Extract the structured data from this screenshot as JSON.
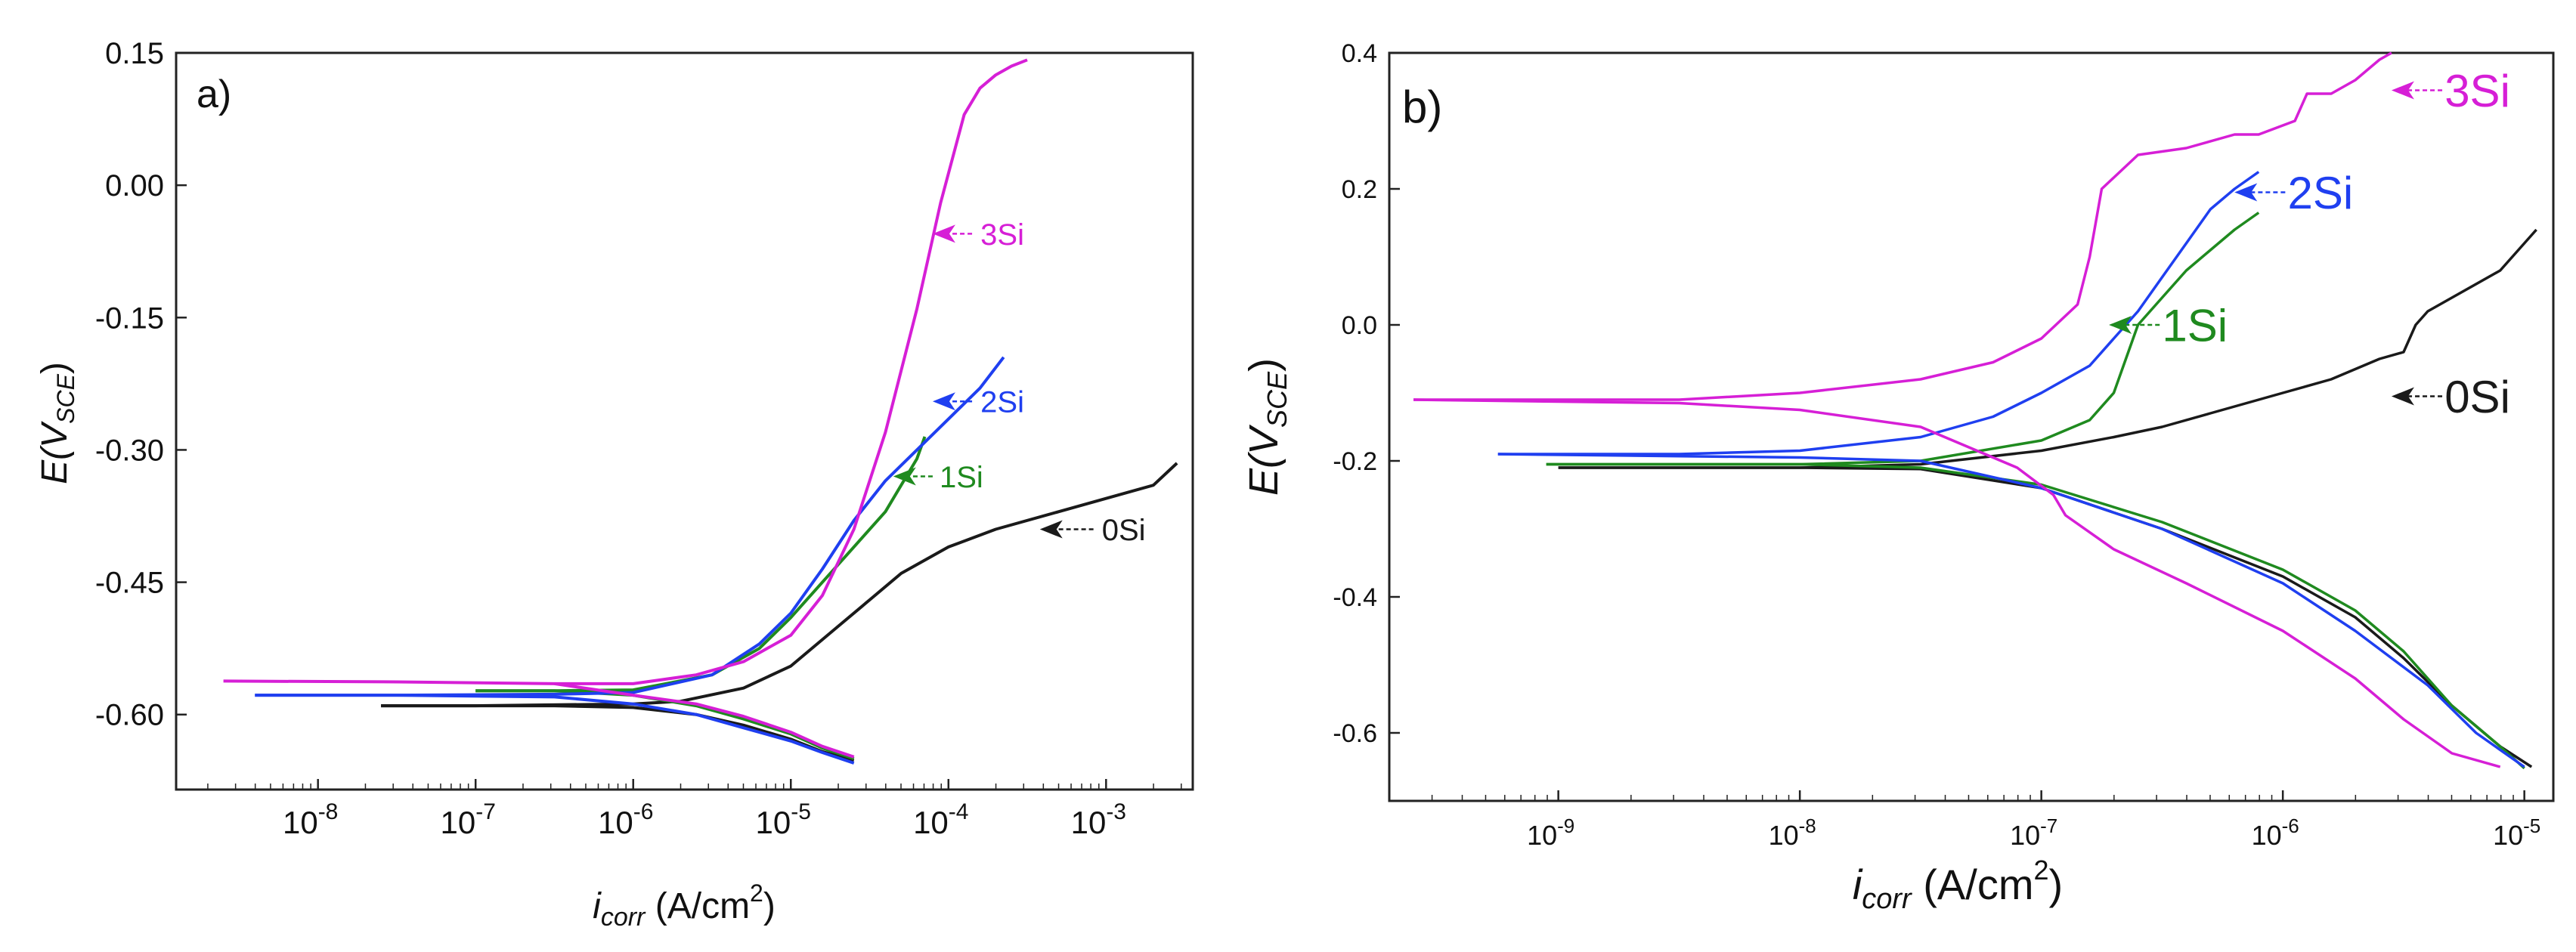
{
  "chart_data": [
    {
      "panel_label": "a)",
      "type": "line",
      "title": "",
      "xlabel_main": "i",
      "xlabel_sub": "corr",
      "xlabel_unit": " (A/cm",
      "xlabel_sup": "2",
      "xlabel_close": ")",
      "ylabel_main": "E(V",
      "ylabel_sub": "SCE",
      "ylabel_close": ")",
      "xscale": "log",
      "xlim_log10": [
        -8.9,
        -2.45
      ],
      "ylim": [
        -0.685,
        0.15
      ],
      "xticks": [
        {
          "exp": -8,
          "label": "10",
          "sup": "-8"
        },
        {
          "exp": -7,
          "label": "10",
          "sup": "-7"
        },
        {
          "exp": -6,
          "label": "10",
          "sup": "-6"
        },
        {
          "exp": -5,
          "label": "10",
          "sup": "-5"
        },
        {
          "exp": -4,
          "label": "10",
          "sup": "-4"
        },
        {
          "exp": -3,
          "label": "10",
          "sup": "-3"
        }
      ],
      "yticks": [
        {
          "value": 0.15,
          "label": "0.15"
        },
        {
          "value": 0.0,
          "label": "0.00"
        },
        {
          "value": -0.15,
          "label": "-0.15"
        },
        {
          "value": -0.3,
          "label": "-0.30"
        },
        {
          "value": -0.45,
          "label": "-0.45"
        },
        {
          "value": -0.6,
          "label": "-0.60"
        }
      ],
      "grid": false,
      "series": [
        {
          "name": "0Si",
          "color": "#1a1a1a",
          "anodic_log10_i": [
            -7.6,
            -7.0,
            -6.0,
            -5.7,
            -5.3,
            -5.0,
            -4.7,
            -4.5,
            -4.3,
            -4.0,
            -3.7,
            -3.3,
            -3.0,
            -2.7,
            -2.55
          ],
          "anodic_E": [
            -0.59,
            -0.59,
            -0.588,
            -0.585,
            -0.57,
            -0.545,
            -0.5,
            -0.47,
            -0.44,
            -0.41,
            -0.39,
            -0.37,
            -0.355,
            -0.34,
            -0.315
          ],
          "cathodic_log10_i": [
            -7.6,
            -6.5,
            -6.0,
            -5.6,
            -5.3,
            -5.0,
            -4.8,
            -4.6
          ],
          "cathodic_E": [
            -0.59,
            -0.59,
            -0.592,
            -0.6,
            -0.612,
            -0.628,
            -0.642,
            -0.652
          ],
          "label_log10_i": -2.95,
          "label_E": -0.39,
          "arrow_from_log10_i": -3.08,
          "arrow_to_log10_i": -3.42
        },
        {
          "name": "1Si",
          "color": "#1f8a1f",
          "anodic_log10_i": [
            -7.0,
            -6.5,
            -6.0,
            -5.5,
            -5.2,
            -5.0,
            -4.8,
            -4.6,
            -4.4,
            -4.2,
            -4.15
          ],
          "anodic_E": [
            -0.573,
            -0.573,
            -0.572,
            -0.555,
            -0.525,
            -0.49,
            -0.45,
            -0.41,
            -0.37,
            -0.31,
            -0.285
          ],
          "cathodic_log10_i": [
            -7.0,
            -6.5,
            -6.0,
            -5.6,
            -5.3,
            -5.0,
            -4.8,
            -4.6
          ],
          "cathodic_E": [
            -0.573,
            -0.573,
            -0.578,
            -0.59,
            -0.605,
            -0.622,
            -0.638,
            -0.65
          ],
          "label_log10_i": -3.98,
          "label_E": -0.33,
          "arrow_from_log10_i": -4.1,
          "arrow_to_log10_i": -4.35
        },
        {
          "name": "2Si",
          "color": "#1f3ff0",
          "anodic_log10_i": [
            -8.4,
            -7.5,
            -6.5,
            -6.0,
            -5.5,
            -5.2,
            -5.0,
            -4.8,
            -4.6,
            -4.4,
            -4.2,
            -4.0,
            -3.8,
            -3.65
          ],
          "anodic_E": [
            -0.578,
            -0.578,
            -0.577,
            -0.575,
            -0.555,
            -0.52,
            -0.485,
            -0.435,
            -0.38,
            -0.335,
            -0.3,
            -0.265,
            -0.23,
            -0.195
          ],
          "cathodic_log10_i": [
            -8.4,
            -7.5,
            -6.5,
            -6.0,
            -5.6,
            -5.3,
            -5.0,
            -4.8,
            -4.6
          ],
          "cathodic_E": [
            -0.578,
            -0.578,
            -0.58,
            -0.588,
            -0.6,
            -0.615,
            -0.63,
            -0.643,
            -0.655
          ],
          "label_log10_i": -3.72,
          "label_E": -0.245,
          "arrow_from_log10_i": -3.85,
          "arrow_to_log10_i": -4.1
        },
        {
          "name": "3Si",
          "color": "#d61fd6",
          "anodic_log10_i": [
            -8.6,
            -7.5,
            -6.5,
            -6.0,
            -5.6,
            -5.3,
            -5.0,
            -4.8,
            -4.6,
            -4.4,
            -4.2,
            -4.05,
            -3.9,
            -3.8,
            -3.7,
            -3.6,
            -3.5
          ],
          "anodic_E": [
            -0.562,
            -0.563,
            -0.565,
            -0.565,
            -0.555,
            -0.54,
            -0.51,
            -0.465,
            -0.39,
            -0.28,
            -0.14,
            -0.02,
            0.08,
            0.11,
            0.125,
            0.135,
            0.142
          ],
          "cathodic_log10_i": [
            -6.5,
            -6.0,
            -5.6,
            -5.3,
            -5.0,
            -4.8,
            -4.6
          ],
          "cathodic_E": [
            -0.565,
            -0.578,
            -0.588,
            -0.602,
            -0.62,
            -0.636,
            -0.648
          ],
          "label_log10_i": -3.72,
          "label_E": -0.055,
          "arrow_from_log10_i": -3.85,
          "arrow_to_log10_i": -4.1
        }
      ]
    },
    {
      "panel_label": "b)",
      "type": "line",
      "title": "",
      "xlabel_main": "i",
      "xlabel_sub": "corr",
      "xlabel_unit": " (A/cm",
      "xlabel_sup": "2",
      "xlabel_close": ")",
      "ylabel_main": "E(V",
      "ylabel_sub": "SCE",
      "ylabel_close": ")",
      "xscale": "log",
      "xlim_log10": [
        -9.7,
        -4.88
      ],
      "ylim": [
        -0.7,
        0.4
      ],
      "xticks": [
        {
          "exp": -9,
          "label": "10",
          "sup": "-9"
        },
        {
          "exp": -8,
          "label": "10",
          "sup": "-8"
        },
        {
          "exp": -7,
          "label": "10",
          "sup": "-7"
        },
        {
          "exp": -6,
          "label": "10",
          "sup": "-6"
        },
        {
          "exp": -5,
          "label": "10",
          "sup": "-5"
        }
      ],
      "yticks": [
        {
          "value": 0.4,
          "label": "0.4"
        },
        {
          "value": 0.2,
          "label": "0.2"
        },
        {
          "value": 0.0,
          "label": "0.0"
        },
        {
          "value": -0.2,
          "label": "-0.2"
        },
        {
          "value": -0.4,
          "label": "-0.4"
        },
        {
          "value": -0.6,
          "label": "-0.6"
        }
      ],
      "grid": false,
      "series": [
        {
          "name": "0Si",
          "color": "#1a1a1a",
          "anodic_log10_i": [
            -9.0,
            -8.0,
            -7.5,
            -7.0,
            -6.7,
            -6.5,
            -6.3,
            -6.0,
            -5.8,
            -5.6,
            -5.5,
            -5.45,
            -5.4,
            -5.3,
            -5.1,
            -4.95
          ],
          "anodic_E": [
            -0.21,
            -0.21,
            -0.205,
            -0.185,
            -0.165,
            -0.15,
            -0.13,
            -0.1,
            -0.08,
            -0.05,
            -0.04,
            0.0,
            0.02,
            0.04,
            0.08,
            0.14
          ],
          "cathodic_log10_i": [
            -9.0,
            -8.0,
            -7.5,
            -7.0,
            -6.5,
            -6.0,
            -5.7,
            -5.5,
            -5.3,
            -5.1,
            -4.97
          ],
          "cathodic_E": [
            -0.21,
            -0.21,
            -0.212,
            -0.24,
            -0.3,
            -0.37,
            -0.43,
            -0.49,
            -0.56,
            -0.62,
            -0.65
          ],
          "label_log10_i": -5.28,
          "label_E": -0.105,
          "arrow_from_log10_i": -5.34,
          "arrow_to_log10_i": -5.55
        },
        {
          "name": "1Si",
          "color": "#1f8a1f",
          "anodic_log10_i": [
            -9.05,
            -8.0,
            -7.5,
            -7.0,
            -6.8,
            -6.7,
            -6.65,
            -6.6,
            -6.5,
            -6.4,
            -6.3,
            -6.2,
            -6.1
          ],
          "anodic_E": [
            -0.205,
            -0.205,
            -0.2,
            -0.17,
            -0.14,
            -0.1,
            -0.05,
            0.0,
            0.04,
            0.08,
            0.11,
            0.14,
            0.165
          ],
          "cathodic_log10_i": [
            -9.05,
            -8.0,
            -7.5,
            -7.0,
            -6.5,
            -6.0,
            -5.7,
            -5.5,
            -5.3,
            -5.1,
            -5.0
          ],
          "cathodic_E": [
            -0.205,
            -0.205,
            -0.21,
            -0.235,
            -0.29,
            -0.36,
            -0.42,
            -0.48,
            -0.56,
            -0.62,
            -0.652
          ],
          "label_log10_i": -6.45,
          "label_E": 0.0,
          "arrow_from_log10_i": -6.51,
          "arrow_to_log10_i": -6.72
        },
        {
          "name": "2Si",
          "color": "#1f3ff0",
          "anodic_log10_i": [
            -9.25,
            -8.5,
            -8.0,
            -7.5,
            -7.2,
            -7.0,
            -6.8,
            -6.7,
            -6.6,
            -6.5,
            -6.4,
            -6.3,
            -6.2,
            -6.1
          ],
          "anodic_E": [
            -0.19,
            -0.19,
            -0.185,
            -0.165,
            -0.135,
            -0.1,
            -0.06,
            -0.02,
            0.02,
            0.07,
            0.12,
            0.17,
            0.2,
            0.225
          ],
          "cathodic_log10_i": [
            -9.25,
            -8.0,
            -7.5,
            -7.0,
            -6.5,
            -6.0,
            -5.7,
            -5.4,
            -5.2,
            -5.0
          ],
          "cathodic_E": [
            -0.19,
            -0.195,
            -0.2,
            -0.24,
            -0.3,
            -0.38,
            -0.45,
            -0.53,
            -0.6,
            -0.65
          ],
          "label_log10_i": -5.93,
          "label_E": 0.195,
          "arrow_from_log10_i": -5.99,
          "arrow_to_log10_i": -6.2
        },
        {
          "name": "3Si",
          "color": "#d61fd6",
          "anodic_log10_i": [
            -9.6,
            -9.0,
            -8.5,
            -8.0,
            -7.5,
            -7.2,
            -7.0,
            -6.85,
            -6.8,
            -6.75,
            -6.6,
            -6.4,
            -6.2,
            -6.1,
            -5.95,
            -5.9,
            -5.8,
            -5.7,
            -5.6,
            -5.55
          ],
          "anodic_E": [
            -0.11,
            -0.11,
            -0.11,
            -0.1,
            -0.08,
            -0.055,
            -0.02,
            0.03,
            0.1,
            0.2,
            0.25,
            0.26,
            0.28,
            0.28,
            0.3,
            0.34,
            0.34,
            0.36,
            0.39,
            0.4
          ],
          "cathodic_log10_i": [
            -9.6,
            -8.5,
            -8.0,
            -7.5,
            -7.1,
            -6.95,
            -6.9,
            -6.7,
            -6.4,
            -6.0,
            -5.7,
            -5.5,
            -5.3,
            -5.1
          ],
          "cathodic_E": [
            -0.11,
            -0.115,
            -0.125,
            -0.15,
            -0.21,
            -0.25,
            -0.28,
            -0.33,
            -0.38,
            -0.45,
            -0.52,
            -0.58,
            -0.63,
            -0.65
          ],
          "label_log10_i": -5.28,
          "label_E": 0.345,
          "arrow_from_log10_i": -5.34,
          "arrow_to_log10_i": -5.55
        }
      ]
    }
  ]
}
